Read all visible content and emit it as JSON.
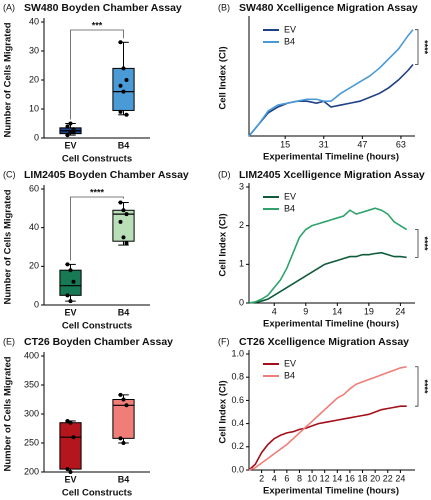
{
  "chart_data": [
    {
      "type": "box",
      "panel_label": "(A)",
      "title": "SW480 Boyden Chamber Assay",
      "xlabel": "Cell Constructs",
      "ylabel": "Number of Cells Migrated",
      "categories": [
        "EV",
        "B4"
      ],
      "boxes": [
        {
          "color": "#1f3f86",
          "min": 1,
          "q1": 1.5,
          "median": 2.5,
          "q3": 3.5,
          "max": 5,
          "points": [
            1,
            2,
            3,
            4,
            5,
            2
          ]
        },
        {
          "color": "#4a9ad6",
          "min": 8,
          "q1": 9.5,
          "median": 16,
          "q3": 24,
          "max": 33,
          "points": [
            33,
            24,
            20,
            18,
            16,
            8,
            9
          ]
        }
      ],
      "ylim": [
        0,
        40
      ],
      "yticks": [
        0,
        10,
        20,
        30,
        40
      ],
      "significance": "***"
    },
    {
      "type": "line",
      "panel_label": "(B)",
      "title": "SW480 Xcelligence Migration Assay",
      "xlabel": "Experimental Timeline (hours)",
      "ylabel": "Cell Index (CI)",
      "x": [
        0,
        4,
        8,
        12,
        16,
        20,
        24,
        28,
        31,
        34,
        38,
        42,
        46,
        50,
        54,
        58,
        62,
        66,
        68
      ],
      "series": [
        {
          "name": "EV",
          "color": "#1f3f86",
          "values": [
            0,
            0.03,
            0.06,
            0.075,
            0.085,
            0.09,
            0.09,
            0.085,
            0.09,
            0.075,
            0.08,
            0.085,
            0.09,
            0.1,
            0.11,
            0.125,
            0.145,
            0.17,
            0.185
          ]
        },
        {
          "name": "B4",
          "color": "#4a9ad6",
          "values": [
            0,
            0.03,
            0.065,
            0.08,
            0.085,
            0.09,
            0.095,
            0.095,
            0.09,
            0.09,
            0.11,
            0.125,
            0.14,
            0.155,
            0.175,
            0.2,
            0.225,
            0.26,
            0.275
          ]
        }
      ],
      "xlim": [
        0,
        68
      ],
      "xticks": [
        15,
        31,
        47,
        63
      ],
      "ylim": [
        0,
        0.3
      ],
      "significance": "****"
    },
    {
      "type": "box",
      "panel_label": "(C)",
      "title": "LIM2405 Boyden Chamber Assay",
      "xlabel": "Cell Constructs",
      "ylabel": "Number of Cells Migrated",
      "categories": [
        "EV",
        "B4"
      ],
      "boxes": [
        {
          "color": "#177a55",
          "min": 2,
          "q1": 5,
          "median": 10,
          "q3": 18,
          "max": 21,
          "points": [
            21,
            18,
            12,
            5,
            2
          ]
        },
        {
          "color": "#b9dfb9",
          "min": 31,
          "q1": 33,
          "median": 47,
          "q3": 49,
          "max": 53,
          "points": [
            53,
            49,
            47,
            43,
            35,
            32
          ]
        }
      ],
      "ylim": [
        0,
        60
      ],
      "yticks": [
        0,
        20,
        40,
        60
      ],
      "significance": "****"
    },
    {
      "type": "line",
      "panel_label": "(D)",
      "title": "LIM2405 Xcelligence Migration Assay",
      "xlabel": "Experimental Timeline (hours)",
      "ylabel": "Cell Index (CI)",
      "x": [
        0,
        1,
        2,
        3,
        4,
        5,
        6,
        7,
        8,
        9,
        10,
        11,
        12,
        13,
        14,
        15,
        16,
        17,
        18,
        19,
        20,
        21,
        22,
        23,
        24,
        25
      ],
      "series": [
        {
          "name": "EV",
          "color": "#0f5c3a",
          "values": [
            0,
            0.02,
            0.05,
            0.1,
            0.2,
            0.3,
            0.4,
            0.5,
            0.6,
            0.7,
            0.8,
            0.9,
            1.0,
            1.05,
            1.1,
            1.15,
            1.2,
            1.2,
            1.25,
            1.25,
            1.28,
            1.3,
            1.25,
            1.2,
            1.2,
            1.18
          ]
        },
        {
          "name": "B4",
          "color": "#2fa36b",
          "values": [
            0,
            0.03,
            0.1,
            0.2,
            0.4,
            0.6,
            0.9,
            1.3,
            1.7,
            1.9,
            2.0,
            2.05,
            2.1,
            2.15,
            2.2,
            2.25,
            2.4,
            2.3,
            2.35,
            2.4,
            2.45,
            2.4,
            2.3,
            2.1,
            2.0,
            1.9
          ]
        }
      ],
      "xlim": [
        0,
        26
      ],
      "xticks": [
        4,
        9,
        14,
        19,
        24
      ],
      "ylim": [
        0,
        3
      ],
      "yticks": [
        0,
        1,
        2,
        3
      ],
      "significance": "****"
    },
    {
      "type": "box",
      "panel_label": "(E)",
      "title": "CT26 Boyden Chamber Assay",
      "xlabel": "Cell Constructs",
      "ylabel": "Number of Cells Migrated",
      "categories": [
        "EV",
        "B4"
      ],
      "boxes": [
        {
          "color": "#b5161e",
          "min": 200,
          "q1": 205,
          "median": 260,
          "q3": 285,
          "max": 288,
          "points": [
            288,
            285,
            260,
            205,
            200
          ]
        },
        {
          "color": "#f07d78",
          "min": 250,
          "q1": 258,
          "median": 315,
          "q3": 325,
          "max": 333,
          "points": [
            333,
            325,
            315,
            258,
            250
          ]
        }
      ],
      "ylim": [
        200,
        400
      ],
      "yticks": [
        200,
        250,
        300,
        350,
        400
      ]
    },
    {
      "type": "line",
      "panel_label": "(F)",
      "title": "CT26 Xcelligence Migration Assay",
      "xlabel": "Experimental Timeline (hours)",
      "ylabel": "Cell Index (CI)",
      "x": [
        0,
        1,
        2,
        3,
        4,
        5,
        6,
        7,
        8,
        9,
        10,
        11,
        12,
        13,
        14,
        15,
        16,
        17,
        18,
        19,
        20,
        21,
        22,
        23,
        24,
        25
      ],
      "series": [
        {
          "name": "EV",
          "color": "#a3101a",
          "values": [
            0,
            0.05,
            0.15,
            0.22,
            0.27,
            0.3,
            0.32,
            0.33,
            0.35,
            0.36,
            0.38,
            0.4,
            0.41,
            0.42,
            0.43,
            0.44,
            0.45,
            0.46,
            0.47,
            0.48,
            0.5,
            0.52,
            0.53,
            0.54,
            0.55,
            0.55
          ]
        },
        {
          "name": "B4",
          "color": "#f07d78",
          "values": [
            0,
            0.02,
            0.06,
            0.1,
            0.14,
            0.18,
            0.22,
            0.27,
            0.32,
            0.37,
            0.42,
            0.47,
            0.52,
            0.57,
            0.62,
            0.65,
            0.7,
            0.74,
            0.76,
            0.78,
            0.8,
            0.82,
            0.84,
            0.86,
            0.88,
            0.89
          ]
        }
      ],
      "xlim": [
        0,
        26
      ],
      "xticks": [
        2,
        4,
        6,
        8,
        10,
        12,
        14,
        16,
        18,
        20,
        22,
        24
      ],
      "ylim": [
        0,
        1.0
      ],
      "yticks": [
        {
          "value": 0,
          "label": "0.0"
        },
        {
          "value": 0.2,
          "label": "0.2"
        },
        {
          "value": 0.4,
          "label": "0.4"
        },
        {
          "value": 0.6,
          "label": "0.6"
        },
        {
          "value": 0.8,
          "label": "0.8"
        },
        {
          "value": 1.0,
          "label": "1.0"
        }
      ],
      "significance": "****"
    }
  ]
}
